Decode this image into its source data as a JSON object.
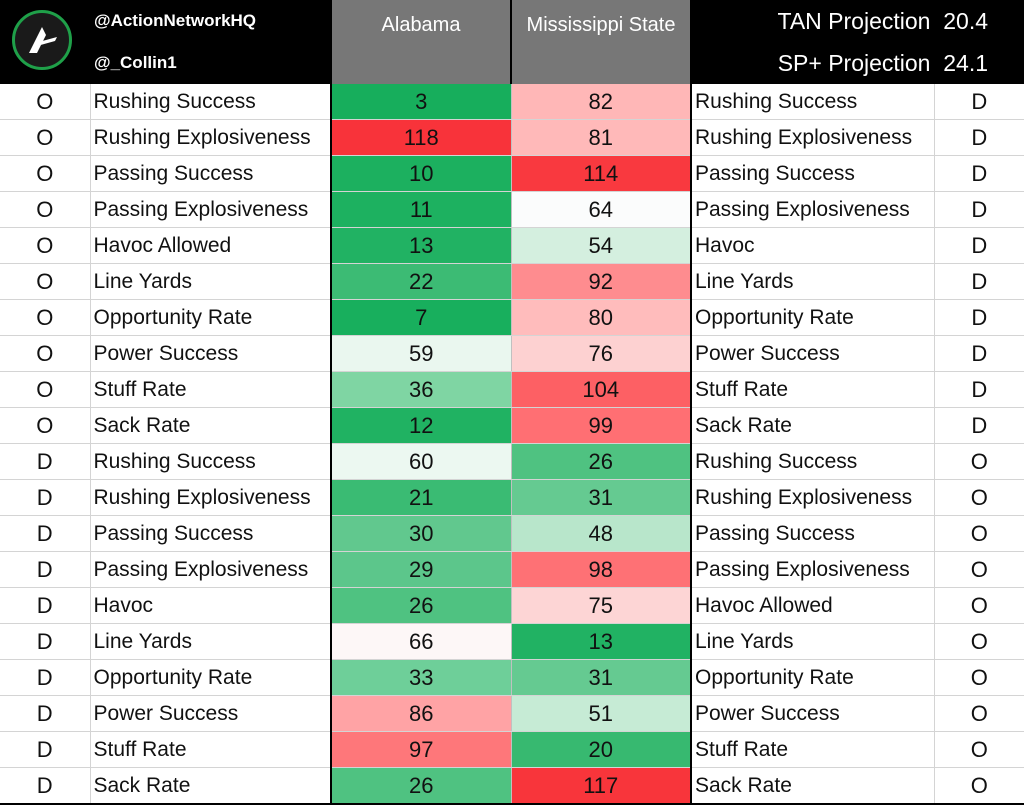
{
  "header": {
    "handle_primary": "@ActionNetworkHQ",
    "handle_secondary": "@_Collin1",
    "team_left": "Alabama",
    "team_right": "Mississippi State",
    "tan_label": "TAN Projection",
    "tan_value": "20.4",
    "sp_label": "SP+ Projection",
    "sp_value": "24.1",
    "logo_icon": "action-network-logo-icon"
  },
  "rows": [
    {
      "l_side": "O",
      "l_metric": "Rushing Success",
      "alabama": "3",
      "alabama_color": "#17ae5c",
      "msu": "82",
      "msu_color": "#ffb7b7",
      "r_metric": "Rushing Success",
      "r_side": "D"
    },
    {
      "l_side": "O",
      "l_metric": "Rushing Explosiveness",
      "alabama": "118",
      "alabama_color": "#f8333a",
      "msu": "81",
      "msu_color": "#ffb9b9",
      "r_metric": "Rushing Explosiveness",
      "r_side": "D"
    },
    {
      "l_side": "O",
      "l_metric": "Passing Success",
      "alabama": "10",
      "alabama_color": "#1cb05f",
      "msu": "114",
      "msu_color": "#f9393f",
      "r_metric": "Passing Success",
      "r_side": "D"
    },
    {
      "l_side": "O",
      "l_metric": "Passing Explosiveness",
      "alabama": "11",
      "alabama_color": "#1db160",
      "msu": "64",
      "msu_color": "#fbfcfc",
      "r_metric": "Passing Explosiveness",
      "r_side": "D"
    },
    {
      "l_side": "O",
      "l_metric": "Havoc Allowed",
      "alabama": "13",
      "alabama_color": "#21b263",
      "msu": "54",
      "msu_color": "#d4efdf",
      "r_metric": "Havoc",
      "r_side": "D"
    },
    {
      "l_side": "O",
      "l_metric": "Line Yards",
      "alabama": "22",
      "alabama_color": "#3cbb74",
      "msu": "92",
      "msu_color": "#fe8c8f",
      "r_metric": "Line Yards",
      "r_side": "D"
    },
    {
      "l_side": "O",
      "l_metric": "Opportunity Rate",
      "alabama": "7",
      "alabama_color": "#18af5d",
      "msu": "80",
      "msu_color": "#ffbcbc",
      "r_metric": "Opportunity Rate",
      "r_side": "D"
    },
    {
      "l_side": "O",
      "l_metric": "Power Success",
      "alabama": "59",
      "alabama_color": "#eaf7ef",
      "msu": "76",
      "msu_color": "#fdd1d1",
      "r_metric": "Power Success",
      "r_side": "D"
    },
    {
      "l_side": "O",
      "l_metric": "Stuff Rate",
      "alabama": "36",
      "alabama_color": "#7fd5a3",
      "msu": "104",
      "msu_color": "#fd6064",
      "r_metric": "Stuff Rate",
      "r_side": "D"
    },
    {
      "l_side": "O",
      "l_metric": "Sack Rate",
      "alabama": "12",
      "alabama_color": "#20b262",
      "msu": "99",
      "msu_color": "#ff6f73",
      "r_metric": "Sack Rate",
      "r_side": "D"
    },
    {
      "l_side": "D",
      "l_metric": "Rushing Success",
      "alabama": "60",
      "alabama_color": "#ecf8f1",
      "msu": "26",
      "msu_color": "#4fc281",
      "r_metric": "Rushing Success",
      "r_side": "O"
    },
    {
      "l_side": "D",
      "l_metric": "Rushing Explosiveness",
      "alabama": "21",
      "alabama_color": "#3abb73",
      "msu": "31",
      "msu_color": "#65ca91",
      "r_metric": "Rushing Explosiveness",
      "r_side": "O"
    },
    {
      "l_side": "D",
      "l_metric": "Passing Success",
      "alabama": "30",
      "alabama_color": "#61c88e",
      "msu": "48",
      "msu_color": "#b8e6cb",
      "r_metric": "Passing Success",
      "r_side": "O"
    },
    {
      "l_side": "D",
      "l_metric": "Passing Explosiveness",
      "alabama": "29",
      "alabama_color": "#5cc68b",
      "msu": "98",
      "msu_color": "#fe7175",
      "r_metric": "Passing Explosiveness",
      "r_side": "O"
    },
    {
      "l_side": "D",
      "l_metric": "Havoc",
      "alabama": "26",
      "alabama_color": "#4fc281",
      "msu": "75",
      "msu_color": "#fdd5d5",
      "r_metric": "Havoc Allowed",
      "r_side": "O"
    },
    {
      "l_side": "D",
      "l_metric": "Line Yards",
      "alabama": "66",
      "alabama_color": "#fdf7f7",
      "msu": "13",
      "msu_color": "#21b263",
      "r_metric": "Line Yards",
      "r_side": "O"
    },
    {
      "l_side": "D",
      "l_metric": "Opportunity Rate",
      "alabama": "33",
      "alabama_color": "#6ecf99",
      "msu": "31",
      "msu_color": "#65ca91",
      "r_metric": "Opportunity Rate",
      "r_side": "O"
    },
    {
      "l_side": "D",
      "l_metric": "Power Success",
      "alabama": "86",
      "alabama_color": "#ffa3a5",
      "msu": "51",
      "msu_color": "#c6ebd5",
      "r_metric": "Power Success",
      "r_side": "O"
    },
    {
      "l_side": "D",
      "l_metric": "Stuff Rate",
      "alabama": "97",
      "alabama_color": "#fe777a",
      "msu": "20",
      "msu_color": "#37b970",
      "r_metric": "Stuff Rate",
      "r_side": "O"
    },
    {
      "l_side": "D",
      "l_metric": "Sack Rate",
      "alabama": "26",
      "alabama_color": "#4fc281",
      "msu": "117",
      "msu_color": "#f8353b",
      "r_metric": "Sack Rate",
      "r_side": "O"
    }
  ]
}
